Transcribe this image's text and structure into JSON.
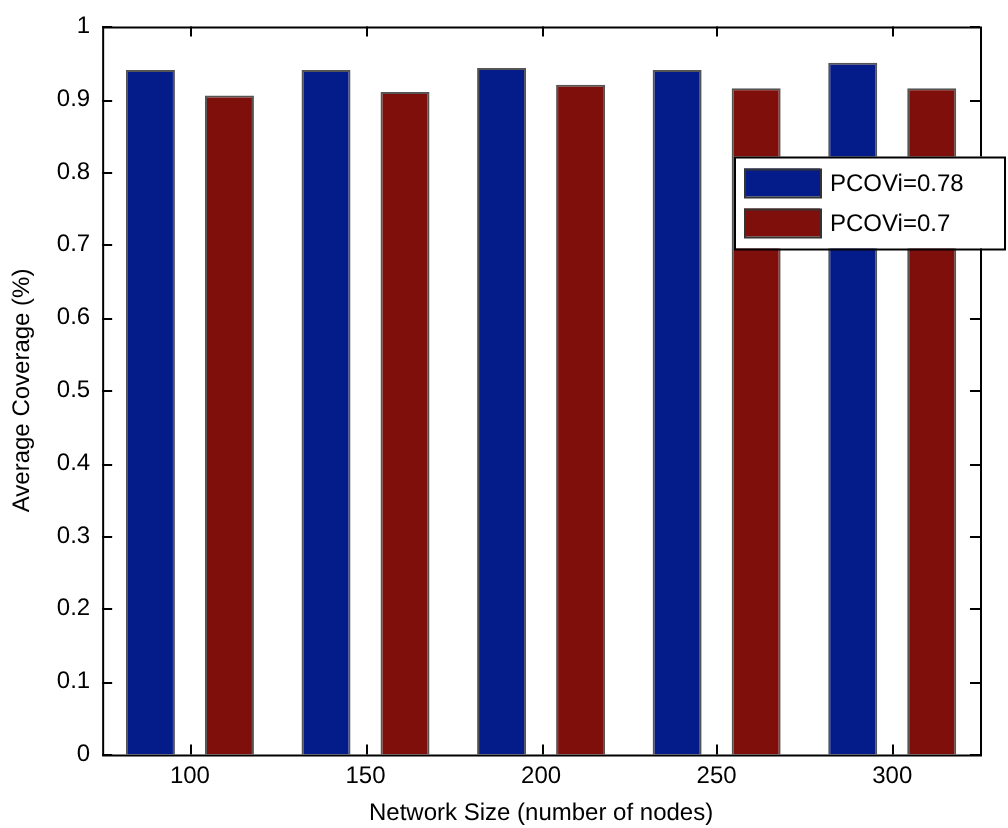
{
  "chart_data": {
    "type": "bar",
    "xlabel": "Network Size (number of nodes)",
    "ylabel": "Average Coverage (%)",
    "categories": [
      "100",
      "150",
      "200",
      "250",
      "300"
    ],
    "series": [
      {
        "name": "PCOVi=0.78",
        "color": "#041c8a",
        "values": [
          0.94,
          0.94,
          0.943,
          0.94,
          0.95
        ]
      },
      {
        "name": "PCOVi=0.7",
        "color": "#7e0f0b",
        "values": [
          0.905,
          0.91,
          0.92,
          0.915,
          0.915
        ]
      }
    ],
    "ylim": [
      0,
      1
    ],
    "yticks": [
      0,
      0.1,
      0.2,
      0.3,
      0.4,
      0.5,
      0.6,
      0.7,
      0.8,
      0.9,
      1
    ],
    "grid": false,
    "legend": "top right"
  }
}
